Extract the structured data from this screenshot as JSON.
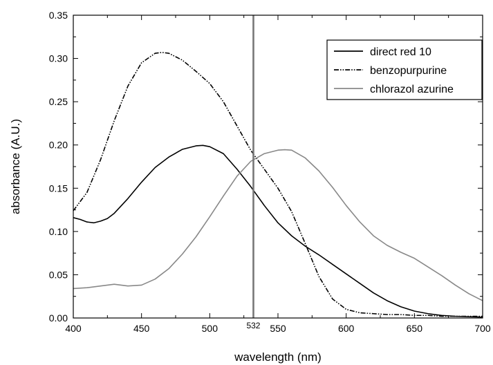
{
  "chart_data": {
    "type": "line",
    "title": "",
    "xlabel": "wavelength (nm)",
    "ylabel": "absorbance (A.U.)",
    "xlim": [
      400,
      700
    ],
    "ylim": [
      0,
      0.35
    ],
    "x_ticks": [
      "400",
      "450",
      "500",
      "550",
      "600",
      "650",
      "700"
    ],
    "y_ticks": [
      "0.00",
      "0.05",
      "0.10",
      "0.15",
      "0.20",
      "0.25",
      "0.30",
      "0.35"
    ],
    "grid": false,
    "legend_position": "top-right",
    "vertical_marker": {
      "x": 532,
      "label": "532",
      "color": "#777777"
    },
    "series": [
      {
        "name": "direct red 10",
        "color": "#000000",
        "dash": "solid",
        "points": [
          [
            400,
            0.116
          ],
          [
            405,
            0.114
          ],
          [
            410,
            0.111
          ],
          [
            415,
            0.11
          ],
          [
            420,
            0.112
          ],
          [
            425,
            0.115
          ],
          [
            430,
            0.121
          ],
          [
            440,
            0.138
          ],
          [
            450,
            0.157
          ],
          [
            460,
            0.174
          ],
          [
            470,
            0.186
          ],
          [
            480,
            0.195
          ],
          [
            490,
            0.199
          ],
          [
            495,
            0.1995
          ],
          [
            500,
            0.198
          ],
          [
            510,
            0.19
          ],
          [
            520,
            0.172
          ],
          [
            530,
            0.152
          ],
          [
            540,
            0.13
          ],
          [
            550,
            0.11
          ],
          [
            560,
            0.095
          ],
          [
            570,
            0.083
          ],
          [
            580,
            0.073
          ],
          [
            590,
            0.062
          ],
          [
            600,
            0.051
          ],
          [
            610,
            0.04
          ],
          [
            620,
            0.029
          ],
          [
            630,
            0.02
          ],
          [
            640,
            0.013
          ],
          [
            650,
            0.008
          ],
          [
            660,
            0.005
          ],
          [
            670,
            0.003
          ],
          [
            680,
            0.002
          ],
          [
            690,
            0.0015
          ],
          [
            700,
            0.001
          ]
        ]
      },
      {
        "name": "benzopurpurine",
        "color": "#000000",
        "dash": "dash-dot-dot",
        "points": [
          [
            400,
            0.124
          ],
          [
            410,
            0.145
          ],
          [
            420,
            0.183
          ],
          [
            430,
            0.228
          ],
          [
            440,
            0.268
          ],
          [
            450,
            0.295
          ],
          [
            460,
            0.306
          ],
          [
            465,
            0.307
          ],
          [
            470,
            0.306
          ],
          [
            480,
            0.298
          ],
          [
            490,
            0.285
          ],
          [
            500,
            0.271
          ],
          [
            510,
            0.25
          ],
          [
            520,
            0.222
          ],
          [
            530,
            0.194
          ],
          [
            540,
            0.172
          ],
          [
            550,
            0.15
          ],
          [
            560,
            0.123
          ],
          [
            570,
            0.086
          ],
          [
            580,
            0.048
          ],
          [
            590,
            0.022
          ],
          [
            600,
            0.01
          ],
          [
            610,
            0.006
          ],
          [
            620,
            0.005
          ],
          [
            630,
            0.004
          ],
          [
            640,
            0.004
          ],
          [
            650,
            0.003
          ],
          [
            660,
            0.003
          ],
          [
            670,
            0.002
          ],
          [
            680,
            0.002
          ],
          [
            690,
            0.002
          ],
          [
            700,
            0.002
          ]
        ]
      },
      {
        "name": "chlorazol azurine",
        "color": "#888888",
        "dash": "solid",
        "points": [
          [
            400,
            0.034
          ],
          [
            410,
            0.035
          ],
          [
            420,
            0.037
          ],
          [
            430,
            0.039
          ],
          [
            440,
            0.037
          ],
          [
            450,
            0.038
          ],
          [
            460,
            0.045
          ],
          [
            470,
            0.057
          ],
          [
            480,
            0.074
          ],
          [
            490,
            0.094
          ],
          [
            500,
            0.117
          ],
          [
            510,
            0.141
          ],
          [
            520,
            0.164
          ],
          [
            530,
            0.181
          ],
          [
            540,
            0.19
          ],
          [
            550,
            0.194
          ],
          [
            555,
            0.1945
          ],
          [
            560,
            0.194
          ],
          [
            570,
            0.185
          ],
          [
            580,
            0.17
          ],
          [
            590,
            0.151
          ],
          [
            600,
            0.13
          ],
          [
            610,
            0.111
          ],
          [
            620,
            0.095
          ],
          [
            630,
            0.084
          ],
          [
            640,
            0.076
          ],
          [
            650,
            0.069
          ],
          [
            660,
            0.059
          ],
          [
            670,
            0.049
          ],
          [
            680,
            0.038
          ],
          [
            690,
            0.028
          ],
          [
            700,
            0.02
          ]
        ]
      }
    ]
  }
}
